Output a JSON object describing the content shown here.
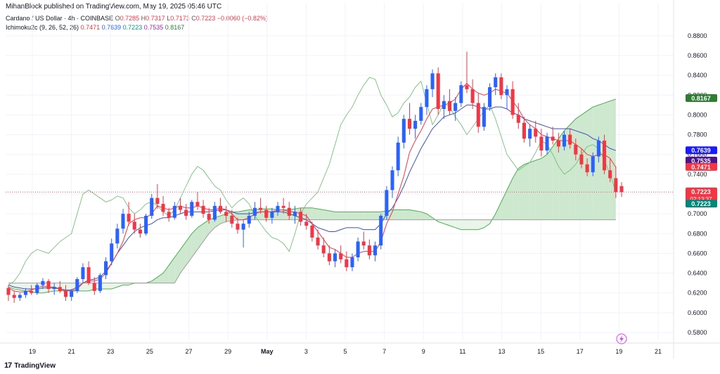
{
  "publisher": "MihanBlock published on TradingView.com, May 19, 2025 05:46 UTC",
  "legend": {
    "symbol": "Cardano / US Dollar · 4h · COINBASE",
    "open_label": "O",
    "open": "0.7285",
    "high_label": "H",
    "high": "0.7317",
    "low_label": "L",
    "low": "0.7173",
    "close_label": "C",
    "close": "0.7223",
    "change": "−0.0060 (−0.82%)",
    "indicator_name": "Ichimoku2c (9, 26, 52, 26)",
    "indicator_values": [
      {
        "value": "0.7471",
        "color": "#f23645"
      },
      {
        "value": "0.7639",
        "color": "#2962ff"
      },
      {
        "value": "0.7223",
        "color": "#089981"
      },
      {
        "value": "0.7535",
        "color": "#9c27b0"
      },
      {
        "value": "0.8167",
        "color": "#2e7d32"
      }
    ]
  },
  "footer_brand": "TradingView",
  "chart_data": {
    "type": "candlestick",
    "x_tick_labels": [
      "19",
      "21",
      "23",
      "25",
      "27",
      "29",
      "May",
      "3",
      "5",
      "7",
      "9",
      "11",
      "13",
      "15",
      "17",
      "19",
      "21"
    ],
    "y_tick_labels": [
      "0.8800",
      "0.8600",
      "0.8400",
      "0.8200",
      "0.8000",
      "0.7800",
      "0.7600",
      "0.7400",
      "0.7200",
      "0.7000",
      "0.6800",
      "0.6600",
      "0.6400",
      "0.6200",
      "0.6000",
      "0.5800"
    ],
    "ylim": [
      0.575,
      0.892
    ],
    "colors": {
      "up": "#2962ff",
      "down": "#f23645",
      "conversion": "#f23645",
      "base": "#3f51b5",
      "lagging": "#43a047",
      "span_a": "#4caf50",
      "span_b": "#9e9e9e",
      "cloud_up": "#c8e6c9",
      "cloud_down": "#e6f4e6",
      "grid": "#f0f3fa"
    },
    "candles_ohlc": [
      [
        0.625,
        0.628,
        0.612,
        0.618
      ],
      [
        0.618,
        0.622,
        0.61,
        0.615
      ],
      [
        0.615,
        0.62,
        0.612,
        0.618
      ],
      [
        0.618,
        0.625,
        0.615,
        0.622
      ],
      [
        0.622,
        0.628,
        0.618,
        0.62
      ],
      [
        0.62,
        0.63,
        0.618,
        0.628
      ],
      [
        0.628,
        0.635,
        0.624,
        0.632
      ],
      [
        0.632,
        0.634,
        0.62,
        0.624
      ],
      [
        0.624,
        0.63,
        0.618,
        0.626
      ],
      [
        0.626,
        0.632,
        0.62,
        0.622
      ],
      [
        0.622,
        0.628,
        0.612,
        0.616
      ],
      [
        0.616,
        0.624,
        0.612,
        0.622
      ],
      [
        0.622,
        0.636,
        0.62,
        0.634
      ],
      [
        0.634,
        0.65,
        0.63,
        0.646
      ],
      [
        0.646,
        0.652,
        0.628,
        0.63
      ],
      [
        0.63,
        0.636,
        0.618,
        0.622
      ],
      [
        0.622,
        0.64,
        0.62,
        0.638
      ],
      [
        0.638,
        0.656,
        0.634,
        0.652
      ],
      [
        0.652,
        0.675,
        0.648,
        0.67
      ],
      [
        0.67,
        0.69,
        0.665,
        0.685
      ],
      [
        0.685,
        0.705,
        0.68,
        0.7
      ],
      [
        0.7,
        0.712,
        0.688,
        0.692
      ],
      [
        0.692,
        0.7,
        0.68,
        0.684
      ],
      [
        0.684,
        0.69,
        0.676,
        0.68
      ],
      [
        0.68,
        0.7,
        0.678,
        0.698
      ],
      [
        0.698,
        0.72,
        0.695,
        0.716
      ],
      [
        0.716,
        0.73,
        0.705,
        0.71
      ],
      [
        0.71,
        0.718,
        0.698,
        0.702
      ],
      [
        0.702,
        0.706,
        0.692,
        0.696
      ],
      [
        0.696,
        0.712,
        0.694,
        0.708
      ],
      [
        0.708,
        0.716,
        0.7,
        0.704
      ],
      [
        0.704,
        0.71,
        0.694,
        0.698
      ],
      [
        0.698,
        0.714,
        0.696,
        0.712
      ],
      [
        0.712,
        0.722,
        0.704,
        0.708
      ],
      [
        0.708,
        0.714,
        0.696,
        0.7
      ],
      [
        0.7,
        0.706,
        0.69,
        0.694
      ],
      [
        0.694,
        0.712,
        0.692,
        0.708
      ],
      [
        0.708,
        0.716,
        0.7,
        0.702
      ],
      [
        0.702,
        0.708,
        0.692,
        0.698
      ],
      [
        0.698,
        0.704,
        0.686,
        0.69
      ],
      [
        0.69,
        0.696,
        0.68,
        0.684
      ],
      [
        0.684,
        0.694,
        0.666,
        0.69
      ],
      [
        0.69,
        0.702,
        0.686,
        0.698
      ],
      [
        0.698,
        0.712,
        0.694,
        0.706
      ],
      [
        0.706,
        0.716,
        0.7,
        0.704
      ],
      [
        0.704,
        0.708,
        0.692,
        0.696
      ],
      [
        0.696,
        0.706,
        0.69,
        0.702
      ],
      [
        0.702,
        0.712,
        0.698,
        0.708
      ],
      [
        0.708,
        0.716,
        0.7,
        0.706
      ],
      [
        0.706,
        0.712,
        0.694,
        0.698
      ],
      [
        0.698,
        0.708,
        0.69,
        0.702
      ],
      [
        0.702,
        0.706,
        0.688,
        0.692
      ],
      [
        0.692,
        0.7,
        0.684,
        0.688
      ],
      [
        0.688,
        0.692,
        0.672,
        0.676
      ],
      [
        0.676,
        0.684,
        0.664,
        0.668
      ],
      [
        0.668,
        0.676,
        0.656,
        0.66
      ],
      [
        0.66,
        0.668,
        0.648,
        0.652
      ],
      [
        0.652,
        0.664,
        0.646,
        0.66
      ],
      [
        0.66,
        0.668,
        0.65,
        0.654
      ],
      [
        0.654,
        0.662,
        0.642,
        0.646
      ],
      [
        0.646,
        0.66,
        0.642,
        0.656
      ],
      [
        0.656,
        0.676,
        0.652,
        0.672
      ],
      [
        0.672,
        0.682,
        0.664,
        0.668
      ],
      [
        0.668,
        0.674,
        0.654,
        0.658
      ],
      [
        0.658,
        0.672,
        0.652,
        0.668
      ],
      [
        0.668,
        0.7,
        0.664,
        0.698
      ],
      [
        0.698,
        0.728,
        0.694,
        0.724
      ],
      [
        0.724,
        0.748,
        0.716,
        0.744
      ],
      [
        0.744,
        0.778,
        0.738,
        0.772
      ],
      [
        0.772,
        0.8,
        0.766,
        0.796
      ],
      [
        0.796,
        0.812,
        0.78,
        0.786
      ],
      [
        0.786,
        0.8,
        0.776,
        0.794
      ],
      [
        0.794,
        0.812,
        0.79,
        0.808
      ],
      [
        0.808,
        0.83,
        0.8,
        0.826
      ],
      [
        0.826,
        0.846,
        0.818,
        0.842
      ],
      [
        0.842,
        0.848,
        0.8,
        0.806
      ],
      [
        0.806,
        0.82,
        0.796,
        0.814
      ],
      [
        0.814,
        0.826,
        0.8,
        0.804
      ],
      [
        0.804,
        0.818,
        0.794,
        0.812
      ],
      [
        0.812,
        0.834,
        0.808,
        0.83
      ],
      [
        0.83,
        0.864,
        0.822,
        0.826
      ],
      [
        0.826,
        0.836,
        0.806,
        0.812
      ],
      [
        0.812,
        0.822,
        0.782,
        0.788
      ],
      [
        0.788,
        0.812,
        0.784,
        0.808
      ],
      [
        0.808,
        0.832,
        0.804,
        0.828
      ],
      [
        0.828,
        0.842,
        0.82,
        0.838
      ],
      [
        0.838,
        0.842,
        0.816,
        0.82
      ],
      [
        0.82,
        0.83,
        0.806,
        0.826
      ],
      [
        0.826,
        0.834,
        0.796,
        0.8
      ],
      [
        0.8,
        0.812,
        0.786,
        0.792
      ],
      [
        0.792,
        0.798,
        0.772,
        0.776
      ],
      [
        0.776,
        0.79,
        0.768,
        0.786
      ],
      [
        0.786,
        0.794,
        0.772,
        0.778
      ],
      [
        0.778,
        0.786,
        0.758,
        0.764
      ],
      [
        0.764,
        0.782,
        0.76,
        0.778
      ],
      [
        0.778,
        0.788,
        0.77,
        0.774
      ],
      [
        0.774,
        0.782,
        0.762,
        0.768
      ],
      [
        0.768,
        0.784,
        0.764,
        0.78
      ],
      [
        0.78,
        0.786,
        0.766,
        0.77
      ],
      [
        0.77,
        0.776,
        0.754,
        0.76
      ],
      [
        0.76,
        0.766,
        0.746,
        0.75
      ],
      [
        0.75,
        0.756,
        0.738,
        0.742
      ],
      [
        0.742,
        0.762,
        0.738,
        0.758
      ],
      [
        0.758,
        0.778,
        0.752,
        0.774
      ],
      [
        0.774,
        0.78,
        0.74,
        0.744
      ],
      [
        0.744,
        0.756,
        0.732,
        0.736
      ],
      [
        0.736,
        0.748,
        0.716,
        0.722
      ],
      [
        0.728,
        0.732,
        0.717,
        0.722
      ]
    ],
    "ichimoku": {
      "conversion": [
        0.625,
        0.622,
        0.621,
        0.621,
        0.623,
        0.625,
        0.627,
        0.626,
        0.626,
        0.624,
        0.622,
        0.622,
        0.624,
        0.63,
        0.632,
        0.632,
        0.634,
        0.64,
        0.65,
        0.66,
        0.672,
        0.69,
        0.694,
        0.696,
        0.696,
        0.7,
        0.708,
        0.706,
        0.704,
        0.706,
        0.708,
        0.706,
        0.706,
        0.708,
        0.706,
        0.704,
        0.704,
        0.706,
        0.704,
        0.7,
        0.694,
        0.694,
        0.696,
        0.7,
        0.702,
        0.702,
        0.702,
        0.704,
        0.704,
        0.702,
        0.702,
        0.7,
        0.698,
        0.69,
        0.682,
        0.674,
        0.666,
        0.664,
        0.66,
        0.656,
        0.656,
        0.66,
        0.662,
        0.662,
        0.662,
        0.672,
        0.69,
        0.702,
        0.72,
        0.738,
        0.762,
        0.774,
        0.784,
        0.796,
        0.806,
        0.808,
        0.81,
        0.812,
        0.816,
        0.826,
        0.832,
        0.826,
        0.822,
        0.82,
        0.822,
        0.826,
        0.824,
        0.822,
        0.814,
        0.806,
        0.796,
        0.79,
        0.786,
        0.78,
        0.778,
        0.776,
        0.774,
        0.774,
        0.774,
        0.77,
        0.766,
        0.76,
        0.758,
        0.76,
        0.76,
        0.756,
        0.747
      ],
      "base": [
        0.628,
        0.626,
        0.625,
        0.624,
        0.624,
        0.624,
        0.625,
        0.625,
        0.625,
        0.624,
        0.623,
        0.623,
        0.626,
        0.63,
        0.633,
        0.634,
        0.636,
        0.642,
        0.65,
        0.66,
        0.668,
        0.676,
        0.682,
        0.686,
        0.688,
        0.69,
        0.694,
        0.696,
        0.696,
        0.698,
        0.7,
        0.702,
        0.702,
        0.702,
        0.702,
        0.702,
        0.703,
        0.704,
        0.704,
        0.702,
        0.7,
        0.7,
        0.7,
        0.701,
        0.702,
        0.702,
        0.702,
        0.702,
        0.702,
        0.7,
        0.698,
        0.696,
        0.694,
        0.69,
        0.686,
        0.684,
        0.682,
        0.682,
        0.684,
        0.686,
        0.686,
        0.686,
        0.684,
        0.684,
        0.684,
        0.69,
        0.7,
        0.706,
        0.716,
        0.728,
        0.742,
        0.754,
        0.766,
        0.776,
        0.786,
        0.792,
        0.798,
        0.8,
        0.802,
        0.806,
        0.81,
        0.81,
        0.808,
        0.806,
        0.806,
        0.808,
        0.808,
        0.806,
        0.802,
        0.8,
        0.796,
        0.794,
        0.792,
        0.79,
        0.788,
        0.786,
        0.786,
        0.786,
        0.786,
        0.784,
        0.782,
        0.78,
        0.776,
        0.774,
        0.77,
        0.766,
        0.764
      ],
      "lagging": [
        0.628,
        0.632,
        0.64,
        0.652,
        0.66,
        0.664,
        0.662,
        0.66,
        0.666,
        0.672,
        0.676,
        0.68,
        0.7,
        0.72,
        0.724,
        0.72,
        0.716,
        0.712,
        0.714,
        0.718,
        0.716,
        0.706,
        0.7,
        0.704,
        0.71,
        0.712,
        0.708,
        0.702,
        0.698,
        0.704,
        0.716,
        0.728,
        0.74,
        0.748,
        0.744,
        0.736,
        0.728,
        0.724,
        0.714,
        0.706,
        0.712,
        0.716,
        0.71,
        0.698,
        0.69,
        0.682,
        0.676,
        0.674,
        0.67,
        0.662,
        0.68,
        0.7,
        0.71,
        0.716,
        0.722,
        0.736,
        0.75,
        0.77,
        0.79,
        0.8,
        0.808,
        0.82,
        0.83,
        0.838,
        0.836,
        0.82,
        0.81,
        0.798,
        0.802,
        0.812,
        0.818,
        0.828,
        0.834,
        0.812,
        0.79,
        0.8,
        0.812,
        0.808,
        0.798,
        0.79,
        0.78,
        0.788,
        0.796,
        0.804,
        0.81,
        0.796,
        0.778,
        0.76,
        0.752,
        0.744,
        0.748,
        0.752,
        0.762,
        0.774,
        0.77,
        0.76,
        0.748,
        0.74,
        0.744,
        0.75,
        0.76,
        0.768,
        0.77,
        0.766,
        0.754,
        0.74,
        0.722
      ],
      "span_a": [
        0.626,
        0.624,
        0.623,
        0.622,
        0.621,
        0.62,
        0.62,
        0.621,
        0.622,
        0.622,
        0.622,
        0.622,
        0.622,
        0.622,
        0.622,
        0.624,
        0.624,
        0.624,
        0.624,
        0.626,
        0.628,
        0.628,
        0.63,
        0.63,
        0.63,
        0.632,
        0.636,
        0.64,
        0.648,
        0.656,
        0.664,
        0.672,
        0.68,
        0.686,
        0.69,
        0.694,
        0.696,
        0.698,
        0.7,
        0.702,
        0.702,
        0.703,
        0.704,
        0.704,
        0.705,
        0.705,
        0.705,
        0.704,
        0.704,
        0.704,
        0.705,
        0.706,
        0.706,
        0.706,
        0.705,
        0.704,
        0.703,
        0.702,
        0.702,
        0.702,
        0.702,
        0.702,
        0.702,
        0.702,
        0.702,
        0.702,
        0.703,
        0.704,
        0.704,
        0.704,
        0.704,
        0.703,
        0.702,
        0.7,
        0.696,
        0.692,
        0.69,
        0.688,
        0.686,
        0.684,
        0.684,
        0.684,
        0.684,
        0.686,
        0.69,
        0.7,
        0.712,
        0.724,
        0.736,
        0.746,
        0.75,
        0.752,
        0.754,
        0.756,
        0.76,
        0.768,
        0.776,
        0.784,
        0.79,
        0.796,
        0.8,
        0.804,
        0.808,
        0.81,
        0.812,
        0.814,
        0.816
      ],
      "span_b": [
        0.63,
        0.63,
        0.63,
        0.63,
        0.63,
        0.63,
        0.63,
        0.63,
        0.63,
        0.63,
        0.63,
        0.63,
        0.63,
        0.63,
        0.63,
        0.63,
        0.63,
        0.63,
        0.63,
        0.63,
        0.63,
        0.63,
        0.63,
        0.63,
        0.63,
        0.63,
        0.63,
        0.63,
        0.63,
        0.63,
        0.64,
        0.648,
        0.656,
        0.664,
        0.672,
        0.68,
        0.686,
        0.69,
        0.692,
        0.693,
        0.694,
        0.694,
        0.694,
        0.694,
        0.694,
        0.694,
        0.694,
        0.694,
        0.694,
        0.694,
        0.694,
        0.694,
        0.694,
        0.694,
        0.694,
        0.694,
        0.694,
        0.694,
        0.694,
        0.694,
        0.694,
        0.694,
        0.694,
        0.694,
        0.694,
        0.694,
        0.694,
        0.694,
        0.694,
        0.694,
        0.694,
        0.694,
        0.694,
        0.694,
        0.694,
        0.694,
        0.694,
        0.694,
        0.694,
        0.694,
        0.694,
        0.694,
        0.694,
        0.694,
        0.694,
        0.694,
        0.694,
        0.694,
        0.694,
        0.694,
        0.694,
        0.694,
        0.694,
        0.694,
        0.694,
        0.694,
        0.694,
        0.694,
        0.694,
        0.694,
        0.694,
        0.694,
        0.694,
        0.694,
        0.694,
        0.694,
        0.694
      ]
    },
    "price_tags": [
      {
        "value": 0.8167,
        "label": "0.8167",
        "color": "#2e7d32"
      },
      {
        "value": 0.7639,
        "label": "0.7639",
        "color": "#1a1aff"
      },
      {
        "value": 0.7535,
        "label": "0.7535",
        "color": "#4a148c"
      },
      {
        "value": 0.7471,
        "label": "0.7471",
        "color": "#f23645"
      },
      {
        "value": 0.7223,
        "label": "0.7223",
        "sublabel": "02:13:37",
        "color": "#f23645"
      },
      {
        "value": 0.71,
        "label": "0.7223",
        "color": "#00897b"
      }
    ]
  }
}
